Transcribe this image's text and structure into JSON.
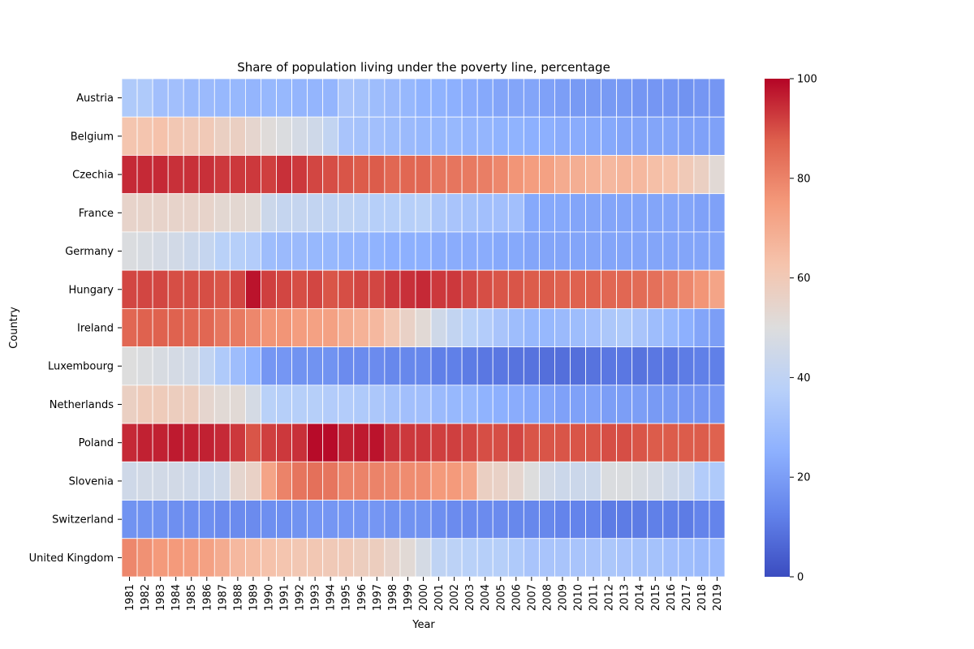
{
  "chart_data": {
    "type": "heatmap",
    "title": "Share of population living under the poverty line, percentage",
    "xlabel": "Year",
    "ylabel": "Country",
    "colormap": "coolwarm",
    "color_range": [
      0,
      100
    ],
    "colorbar_ticks": [
      "0",
      "20",
      "40",
      "60",
      "80",
      "100"
    ],
    "x": [
      "1981",
      "1982",
      "1983",
      "1984",
      "1985",
      "1986",
      "1987",
      "1988",
      "1989",
      "1990",
      "1991",
      "1992",
      "1993",
      "1994",
      "1995",
      "1996",
      "1997",
      "1998",
      "1999",
      "2000",
      "2001",
      "2002",
      "2003",
      "2004",
      "2005",
      "2006",
      "2007",
      "2008",
      "2009",
      "2010",
      "2011",
      "2012",
      "2013",
      "2014",
      "2015",
      "2016",
      "2017",
      "2018",
      "2019"
    ],
    "y": [
      "Austria",
      "Belgium",
      "Czechia",
      "France",
      "Germany",
      "Hungary",
      "Ireland",
      "Luxembourg",
      "Netherlands",
      "Poland",
      "Slovenia",
      "Switzerland",
      "United Kingdom"
    ],
    "values": [
      [
        35,
        35,
        31,
        31,
        29,
        29,
        28,
        28,
        27,
        28,
        28,
        27,
        27,
        27,
        33,
        32,
        30,
        29,
        28,
        26,
        26,
        25,
        24,
        23,
        22,
        22,
        22,
        21,
        20,
        19,
        19,
        19,
        19,
        18,
        18,
        18,
        17,
        18,
        18
      ],
      [
        62,
        62,
        63,
        61,
        60,
        60,
        57,
        57,
        54,
        51,
        49,
        47,
        45,
        41,
        33,
        32,
        31,
        30,
        29,
        28,
        28,
        28,
        27,
        27,
        26,
        26,
        25,
        25,
        24,
        24,
        23,
        23,
        22,
        22,
        22,
        22,
        21,
        21,
        21
      ],
      [
        95,
        95,
        95,
        94,
        94,
        94,
        93,
        93,
        93,
        92,
        94,
        93,
        91,
        90,
        89,
        88,
        88,
        86,
        86,
        86,
        83,
        83,
        82,
        81,
        79,
        76,
        74,
        73,
        70,
        69,
        68,
        66,
        67,
        66,
        64,
        63,
        60,
        57,
        52
      ],
      [
        55,
        55,
        55,
        55,
        55,
        55,
        53,
        53,
        52,
        44,
        42,
        42,
        41,
        40,
        40,
        39,
        37,
        37,
        37,
        38,
        34,
        33,
        32,
        31,
        31,
        31,
        23,
        23,
        23,
        22,
        22,
        22,
        22,
        22,
        22,
        22,
        22,
        21,
        21
      ],
      [
        49,
        48,
        47,
        46,
        44,
        42,
        38,
        37,
        36,
        30,
        29,
        29,
        28,
        28,
        27,
        27,
        26,
        25,
        25,
        25,
        24,
        24,
        24,
        24,
        23,
        23,
        22,
        22,
        22,
        22,
        22,
        22,
        22,
        22,
        22,
        22,
        22,
        22,
        22
      ],
      [
        91,
        91,
        91,
        90,
        90,
        90,
        89,
        91,
        98,
        92,
        91,
        90,
        91,
        89,
        90,
        91,
        91,
        93,
        94,
        95,
        93,
        93,
        91,
        90,
        89,
        89,
        88,
        88,
        87,
        87,
        87,
        86,
        86,
        85,
        84,
        82,
        79,
        76,
        72
      ],
      [
        86,
        87,
        87,
        87,
        86,
        86,
        83,
        82,
        79,
        76,
        76,
        74,
        73,
        73,
        70,
        68,
        66,
        61,
        56,
        52,
        45,
        41,
        38,
        36,
        33,
        30,
        28,
        28,
        29,
        30,
        31,
        34,
        35,
        33,
        30,
        28,
        25,
        22,
        20
      ],
      [
        50,
        49,
        48,
        47,
        46,
        41,
        35,
        30,
        26,
        18,
        18,
        17,
        17,
        17,
        15,
        15,
        15,
        14,
        14,
        14,
        12,
        12,
        11,
        10,
        10,
        9,
        9,
        8,
        8,
        8,
        9,
        10,
        10,
        9,
        10,
        10,
        11,
        12,
        12
      ],
      [
        57,
        59,
        59,
        58,
        58,
        54,
        52,
        52,
        47,
        38,
        37,
        37,
        37,
        36,
        36,
        35,
        34,
        32,
        31,
        31,
        29,
        28,
        28,
        26,
        25,
        24,
        23,
        22,
        21,
        21,
        21,
        20,
        20,
        20,
        19,
        19,
        18,
        18,
        18
      ],
      [
        95,
        96,
        96,
        97,
        96,
        96,
        95,
        93,
        89,
        92,
        93,
        94,
        99,
        99,
        96,
        97,
        98,
        94,
        93,
        93,
        92,
        92,
        91,
        90,
        90,
        91,
        89,
        89,
        89,
        89,
        89,
        90,
        90,
        89,
        88,
        88,
        88,
        88,
        87
      ],
      [
        45,
        46,
        46,
        46,
        45,
        44,
        45,
        54,
        56,
        72,
        80,
        83,
        84,
        83,
        80,
        80,
        80,
        79,
        78,
        78,
        75,
        75,
        72,
        57,
        56,
        54,
        50,
        46,
        44,
        44,
        44,
        49,
        49,
        48,
        47,
        45,
        43,
        36,
        35
      ],
      [
        17,
        17,
        17,
        16,
        16,
        16,
        15,
        15,
        15,
        16,
        16,
        17,
        18,
        18,
        18,
        18,
        18,
        17,
        17,
        17,
        16,
        15,
        15,
        15,
        15,
        14,
        14,
        14,
        13,
        13,
        13,
        11,
        11,
        11,
        12,
        12,
        11,
        13,
        13
      ],
      [
        79,
        77,
        75,
        75,
        74,
        73,
        70,
        66,
        65,
        63,
        62,
        61,
        61,
        60,
        60,
        58,
        58,
        55,
        52,
        47,
        40,
        39,
        38,
        37,
        37,
        35,
        33,
        33,
        33,
        33,
        33,
        34,
        33,
        32,
        32,
        31,
        30,
        29,
        29
      ]
    ]
  }
}
